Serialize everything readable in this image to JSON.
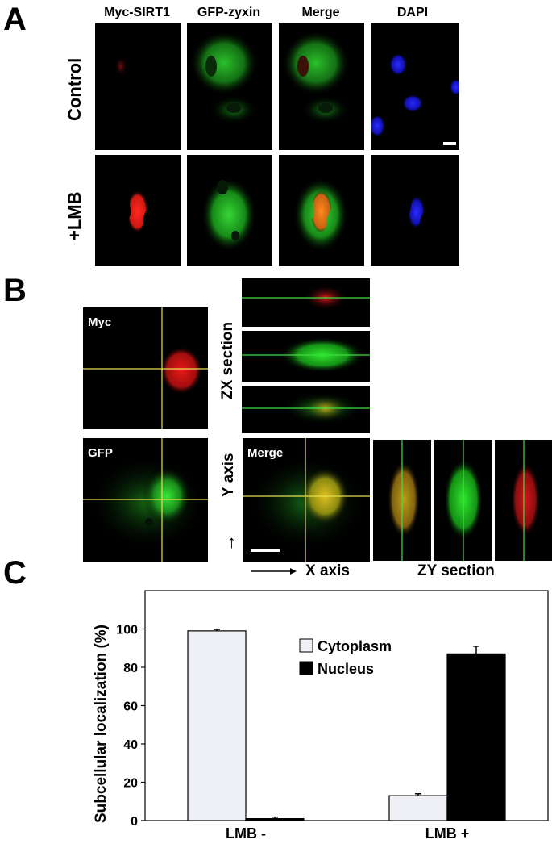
{
  "panel_a": {
    "letter": "A",
    "columns": [
      "Myc-SIRT1",
      "GFP-zyxin",
      "Merge",
      "DAPI"
    ],
    "rows": [
      "Control",
      "+LMB"
    ]
  },
  "panel_b": {
    "letter": "B",
    "labels": {
      "myc": "Myc",
      "gfp": "GFP",
      "merge": "Merge",
      "zx_section": "ZX section",
      "y_axis": "Y axis",
      "x_axis": "X axis",
      "zy_section": "ZY section",
      "arrow": "→"
    }
  },
  "panel_c": {
    "letter": "C",
    "colors": {
      "cytoplasm": "#eef0f5",
      "nucleus": "#000000"
    }
  },
  "chart_data": {
    "type": "bar",
    "categories": [
      "LMB -",
      "LMB +"
    ],
    "series": [
      {
        "name": "Cytoplasm",
        "values": [
          99,
          13
        ],
        "errors": [
          0.8,
          1.0
        ]
      },
      {
        "name": "Nucleus",
        "values": [
          1,
          87
        ],
        "errors": [
          0.8,
          4.0
        ]
      }
    ],
    "title": "",
    "xlabel": "",
    "ylabel": "Subcellular localization (%)",
    "ylim": [
      0,
      120
    ],
    "yticks": [
      0,
      20,
      40,
      60,
      80,
      100
    ],
    "legend": "top-right",
    "grid": false
  }
}
